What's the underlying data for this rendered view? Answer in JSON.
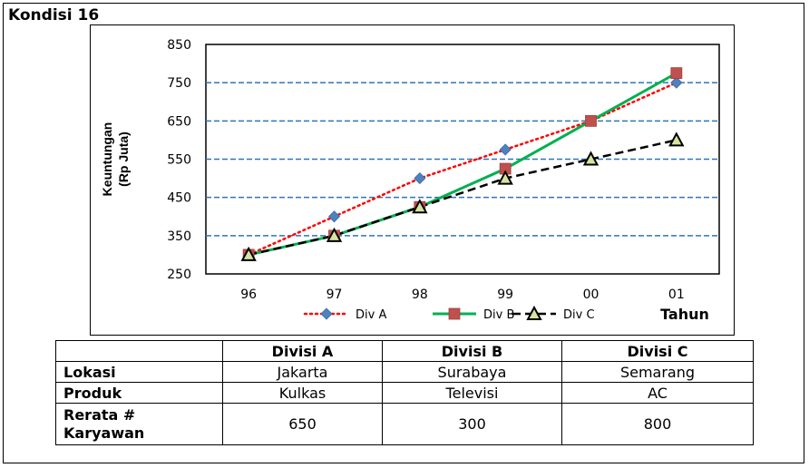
{
  "title": "Kondisi 16",
  "chart_data": {
    "type": "line",
    "ylabel": "Keuntungan\n(Rp Juta)",
    "xlabel": "Tahun",
    "categories": [
      "96",
      "97",
      "98",
      "99",
      "00",
      "01"
    ],
    "yticks": [
      250,
      350,
      450,
      550,
      650,
      750,
      850
    ],
    "ylim": [
      250,
      850
    ],
    "grid": "dashed horizontal",
    "legend_position": "bottom",
    "series": [
      {
        "name": "Div A",
        "values": [
          300,
          400,
          500,
          575,
          650,
          750
        ],
        "color": "#ff0000",
        "marker_color": "#4f81bd",
        "style": "dotted",
        "marker": "diamond"
      },
      {
        "name": "Div B",
        "values": [
          300,
          350,
          425,
          525,
          650,
          775
        ],
        "color": "#00b050",
        "marker_color": "#c0504d",
        "style": "solid",
        "marker": "square"
      },
      {
        "name": "Div C",
        "values": [
          300,
          350,
          425,
          500,
          550,
          600
        ],
        "color": "#000000",
        "marker_color": "#000000",
        "marker_fill": "#d7e4a0",
        "style": "dashed",
        "marker": "triangle"
      }
    ]
  },
  "table": {
    "headers": [
      "",
      "Divisi A",
      "Divisi B",
      "Divisi C"
    ],
    "rows": [
      {
        "label": "Lokasi",
        "values": [
          "Jakarta",
          "Surabaya",
          "Semarang"
        ]
      },
      {
        "label": "Produk",
        "values": [
          "Kulkas",
          "Televisi",
          "AC"
        ]
      },
      {
        "label": "Rerata #\nKaryawan",
        "values": [
          "650",
          "300",
          "800"
        ]
      }
    ]
  }
}
